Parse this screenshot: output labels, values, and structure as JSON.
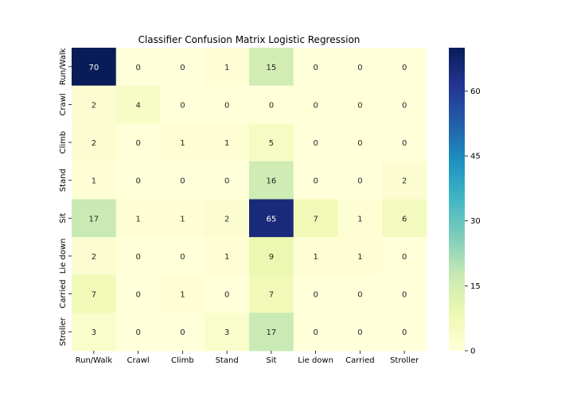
{
  "chart_data": {
    "type": "heatmap",
    "title": "Classifier Confusion Matrix Logistic Regression",
    "xlabel": "",
    "ylabel": "",
    "x_categories": [
      "Run/Walk",
      "Crawl",
      "Climb",
      "Stand",
      "Sit",
      "Lie down",
      "Carried",
      "Stroller"
    ],
    "y_categories": [
      "Run/Walk",
      "Crawl",
      "Climb",
      "Stand",
      "Sit",
      "Lie down",
      "Carried",
      "Stroller"
    ],
    "values": [
      [
        70,
        0,
        0,
        1,
        15,
        0,
        0,
        0
      ],
      [
        2,
        4,
        0,
        0,
        0,
        0,
        0,
        0
      ],
      [
        2,
        0,
        1,
        1,
        5,
        0,
        0,
        0
      ],
      [
        1,
        0,
        0,
        0,
        16,
        0,
        0,
        2
      ],
      [
        17,
        1,
        1,
        2,
        65,
        7,
        1,
        6
      ],
      [
        2,
        0,
        0,
        1,
        9,
        1,
        1,
        0
      ],
      [
        7,
        0,
        1,
        0,
        7,
        0,
        0,
        0
      ],
      [
        3,
        0,
        0,
        3,
        17,
        0,
        0,
        0
      ]
    ],
    "colormap": "YlGnBu",
    "vmin": 0,
    "vmax": 70,
    "colorbar_ticks": [
      0,
      15,
      30,
      45,
      60
    ],
    "annotations": true
  }
}
